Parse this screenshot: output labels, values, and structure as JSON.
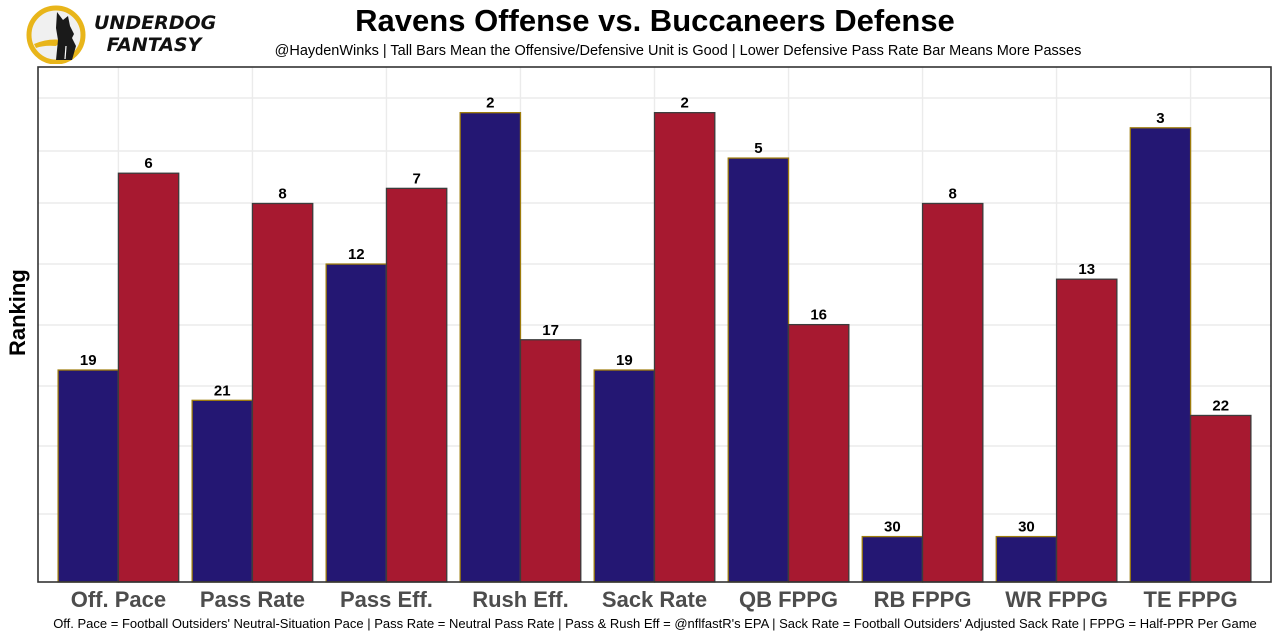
{
  "brand": {
    "line1": "UNDERDOG",
    "line2": "FANTASY",
    "icon": "underdog-dog-logo-icon"
  },
  "chart_data": {
    "type": "bar",
    "title": "Ravens Offense vs. Buccaneers Defense",
    "subtitle": "@HaydenWinks | Tall Bars Mean the Offensive/Defensive Unit is Good | Lower Defensive Pass Rate Bar Means More Passes",
    "xlabel": "",
    "ylabel": "Ranking",
    "caption": "Off. Pace = Football Outsiders' Neutral-Situation Pace | Pass Rate = Neutral Pass Rate | Pass & Rush Eff = @nflfastR's EPA | Sack Rate = Football Outsiders' Adjusted Sack Rate | FPPG = Half-PPR Per Game",
    "categories": [
      "Off. Pace",
      "Pass Rate",
      "Pass Eff.",
      "Rush Eff.",
      "Sack Rate",
      "QB FPPG",
      "RB FPPG",
      "WR FPPG",
      "TE FPPG"
    ],
    "series": [
      {
        "name": "Ravens Offense",
        "color": "#241773",
        "outline": "#9E7C0C",
        "values": [
          19,
          21,
          12,
          2,
          19,
          5,
          30,
          30,
          3
        ]
      },
      {
        "name": "Buccaneers Defense",
        "color": "#A71930",
        "outline": "#3c3c3c",
        "values": [
          6,
          8,
          7,
          17,
          2,
          16,
          8,
          13,
          22
        ]
      }
    ],
    "bar_height_rule": "33 - rank (lower rank = taller bar)",
    "ylim_inverted_rank": [
      33,
      0
    ],
    "grid": true,
    "legend": "none"
  }
}
